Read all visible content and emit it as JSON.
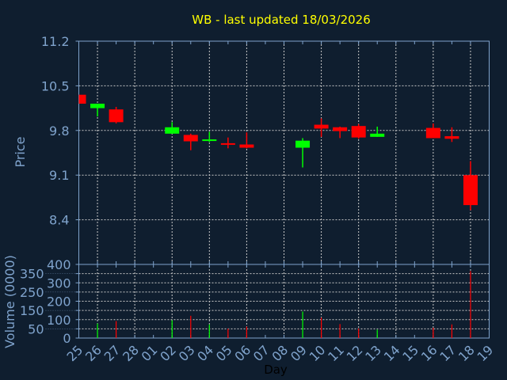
{
  "chart_data": [
    {
      "type": "candlestick",
      "title": "WB - last updated 18/03/2026",
      "ylabel": "Price",
      "ylim": [
        7.7,
        11.2
      ],
      "yticks": [
        11.2,
        10.5,
        9.8,
        9.1,
        8.4
      ],
      "grid": true,
      "up_color": "#00ff00",
      "down_color": "#ff0000",
      "days": [
        "25",
        "26",
        "27",
        "28",
        "01",
        "02",
        "03",
        "04",
        "05",
        "06",
        "07",
        "08",
        "09",
        "10",
        "11",
        "12",
        "13",
        "14",
        "15",
        "16",
        "17",
        "18",
        "19"
      ],
      "candles": [
        {
          "day": "25",
          "open": 10.36,
          "high": 10.36,
          "low": 10.22,
          "close": 10.22
        },
        {
          "day": "26",
          "open": 10.15,
          "high": 10.22,
          "low": 10.02,
          "close": 10.22
        },
        {
          "day": "27",
          "open": 10.13,
          "high": 10.17,
          "low": 9.91,
          "close": 9.93
        },
        {
          "day": "02",
          "open": 9.75,
          "high": 9.93,
          "low": 9.75,
          "close": 9.85
        },
        {
          "day": "03",
          "open": 9.73,
          "high": 9.75,
          "low": 9.49,
          "close": 9.63
        },
        {
          "day": "04",
          "open": 9.64,
          "high": 9.78,
          "low": 9.62,
          "close": 9.66
        },
        {
          "day": "05",
          "open": 9.6,
          "high": 9.69,
          "low": 9.52,
          "close": 9.58
        },
        {
          "day": "06",
          "open": 9.58,
          "high": 9.77,
          "low": 9.52,
          "close": 9.53
        },
        {
          "day": "09",
          "open": 9.53,
          "high": 9.68,
          "low": 9.22,
          "close": 9.64
        },
        {
          "day": "10",
          "open": 9.89,
          "high": 9.99,
          "low": 9.7,
          "close": 9.83
        },
        {
          "day": "11",
          "open": 9.85,
          "high": 9.86,
          "low": 9.68,
          "close": 9.79
        },
        {
          "day": "12",
          "open": 9.87,
          "high": 9.9,
          "low": 9.67,
          "close": 9.69
        },
        {
          "day": "13",
          "open": 9.7,
          "high": 9.86,
          "low": 9.7,
          "close": 9.75
        },
        {
          "day": "16",
          "open": 9.84,
          "high": 9.91,
          "low": 9.68,
          "close": 9.68
        },
        {
          "day": "17",
          "open": 9.71,
          "high": 9.85,
          "low": 9.62,
          "close": 9.67
        },
        {
          "day": "18",
          "open": 9.1,
          "high": 9.32,
          "low": 8.55,
          "close": 8.63
        }
      ]
    },
    {
      "type": "bar",
      "ylabel": "Volume (0000)",
      "xlabel": "Day",
      "ylim": [
        0,
        400
      ],
      "yticks": [
        0,
        50,
        100,
        150,
        200,
        250,
        300,
        350,
        400
      ],
      "grid": true,
      "bars": [
        {
          "day": "26",
          "value": 79,
          "color": "#00ff00"
        },
        {
          "day": "27",
          "value": 92,
          "color": "#ff0000"
        },
        {
          "day": "02",
          "value": 97,
          "color": "#00ff00"
        },
        {
          "day": "03",
          "value": 121,
          "color": "#ff0000"
        },
        {
          "day": "04",
          "value": 74,
          "color": "#00ff00"
        },
        {
          "day": "05",
          "value": 51,
          "color": "#ff0000"
        },
        {
          "day": "06",
          "value": 62,
          "color": "#ff0000"
        },
        {
          "day": "09",
          "value": 144,
          "color": "#00ff00"
        },
        {
          "day": "10",
          "value": 111,
          "color": "#ff0000"
        },
        {
          "day": "11",
          "value": 76,
          "color": "#ff0000"
        },
        {
          "day": "12",
          "value": 52,
          "color": "#ff0000"
        },
        {
          "day": "13",
          "value": 46,
          "color": "#00ff00"
        },
        {
          "day": "16",
          "value": 56,
          "color": "#ff0000"
        },
        {
          "day": "17",
          "value": 74,
          "color": "#ff0000"
        },
        {
          "day": "18",
          "value": 364,
          "color": "#ff0000"
        }
      ]
    }
  ]
}
